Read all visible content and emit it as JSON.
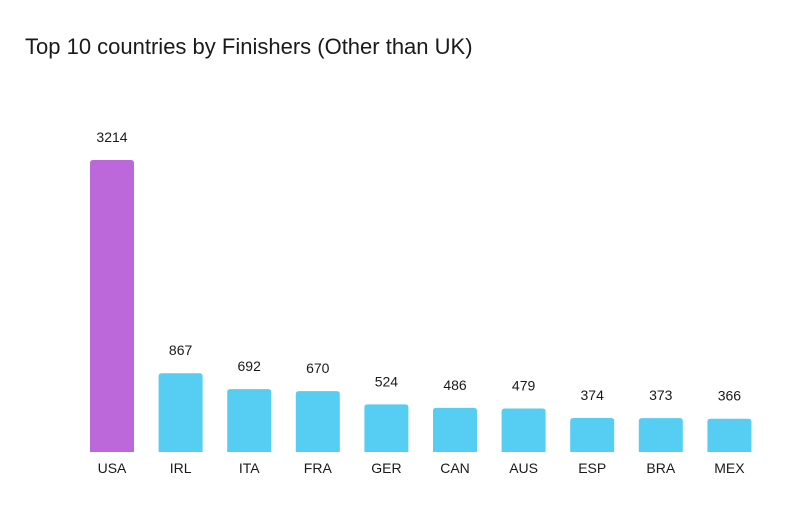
{
  "chart_data": {
    "type": "bar",
    "title": "Top 10 countries by Finishers (Other than UK)",
    "xlabel": "",
    "ylabel": "",
    "categories": [
      "USA",
      "IRL",
      "ITA",
      "FRA",
      "GER",
      "CAN",
      "AUS",
      "ESP",
      "BRA",
      "MEX"
    ],
    "values": [
      3214,
      867,
      692,
      670,
      524,
      486,
      479,
      374,
      373,
      366
    ],
    "ylim": [
      0,
      3214
    ],
    "grid": false,
    "legend": "none",
    "highlight_index": 0,
    "colors": {
      "highlight": "#bc68da",
      "bar": "#56cdf2"
    }
  }
}
